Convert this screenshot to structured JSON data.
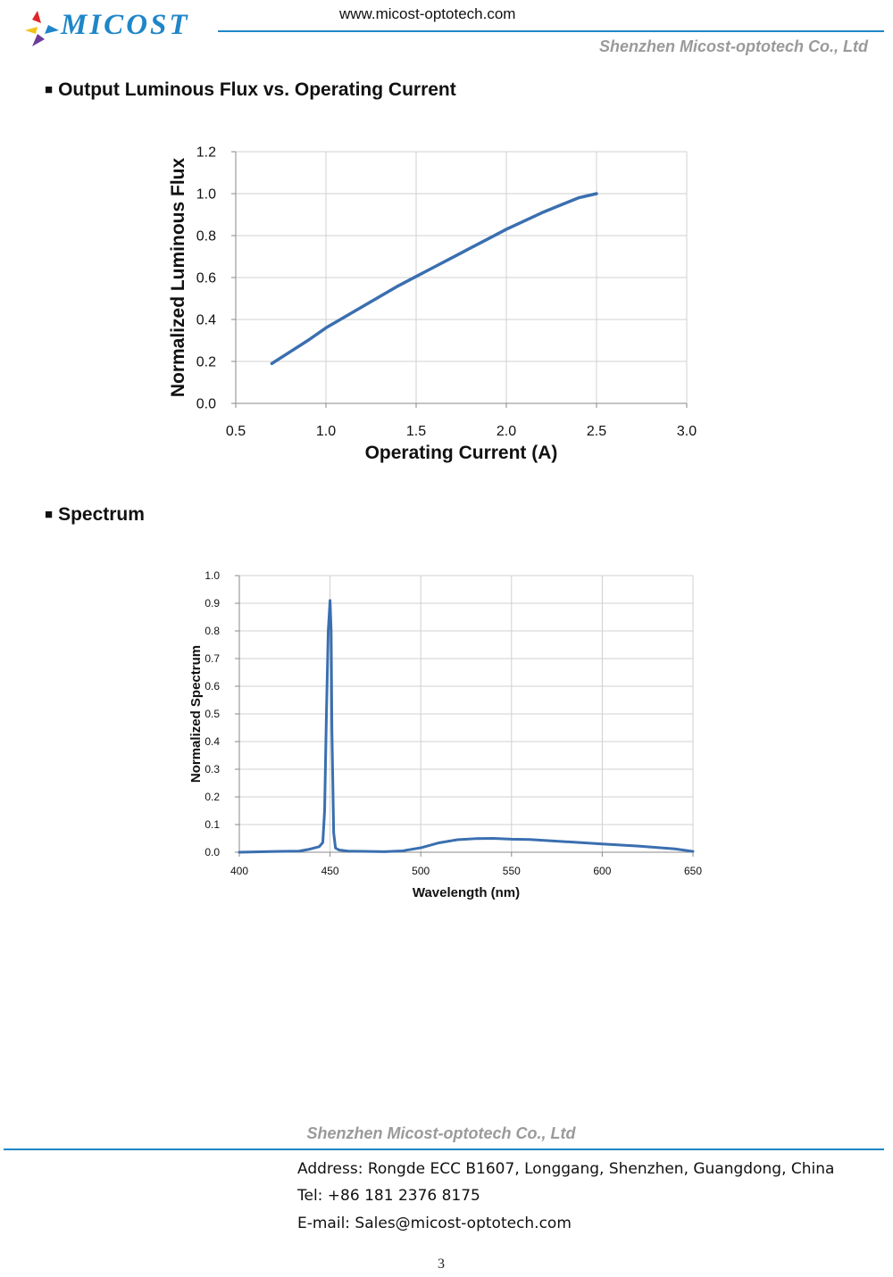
{
  "header": {
    "logo_text": "MICOST",
    "website": "www.micost-optotech.com",
    "company": "Shenzhen Micost-optotech Co., Ltd",
    "colors": {
      "brand_blue": "#1f86c8",
      "logo_red": "#e0262b",
      "logo_yellow": "#f2c318",
      "logo_purple": "#6a3d9a",
      "company_gray": "#9a9a9a"
    }
  },
  "sections": {
    "flux": {
      "bullet": "■",
      "title": "Output Luminous Flux vs. Operating Current"
    },
    "spectrum": {
      "bullet": "■",
      "title": "Spectrum"
    }
  },
  "chart_data": [
    {
      "type": "line",
      "title": "",
      "xlabel": "Operating Current (A)",
      "ylabel": "Normalized Luminous Flux",
      "xlim": [
        0.5,
        3.0
      ],
      "ylim": [
        0.0,
        1.2
      ],
      "x_ticks": [
        "0.5",
        "1.0",
        "1.5",
        "2.0",
        "2.5",
        "3.0"
      ],
      "y_ticks": [
        "0.0",
        "0.2",
        "0.4",
        "0.6",
        "0.8",
        "1.0",
        "1.2"
      ],
      "grid": true,
      "series_color": "#3a6fb0",
      "series": [
        {
          "x": [
            0.7,
            0.8,
            0.9,
            1.0,
            1.1,
            1.2,
            1.3,
            1.4,
            1.5,
            1.6,
            1.7,
            1.8,
            1.9,
            2.0,
            2.1,
            2.2,
            2.3,
            2.4,
            2.5
          ],
          "y": [
            0.19,
            0.245,
            0.3,
            0.36,
            0.41,
            0.46,
            0.51,
            0.56,
            0.605,
            0.65,
            0.695,
            0.74,
            0.785,
            0.83,
            0.87,
            0.91,
            0.945,
            0.98,
            1.0
          ]
        }
      ]
    },
    {
      "type": "line",
      "title": "",
      "xlabel": "Wavelength (nm)",
      "ylabel": "Normalized Spectrum",
      "xlim": [
        400,
        650
      ],
      "ylim": [
        0.0,
        1.0
      ],
      "x_ticks": [
        "400",
        "450",
        "500",
        "550",
        "600",
        "650"
      ],
      "y_ticks": [
        "0.0",
        "0.1",
        "0.2",
        "0.3",
        "0.4",
        "0.5",
        "0.6",
        "0.7",
        "0.8",
        "0.9",
        "1.0"
      ],
      "grid": true,
      "series_color": "#3a6fb0",
      "series": [
        {
          "x": [
            400,
            420,
            433,
            438,
            444,
            446,
            447,
            448,
            449,
            450,
            450.6,
            451,
            452,
            453,
            455,
            460,
            480,
            490,
            500,
            510,
            520,
            530,
            540,
            550,
            560,
            580,
            600,
            620,
            640,
            650
          ],
          "y": [
            0.0,
            0.003,
            0.004,
            0.01,
            0.02,
            0.035,
            0.15,
            0.5,
            0.8,
            0.91,
            0.8,
            0.45,
            0.07,
            0.015,
            0.008,
            0.004,
            0.002,
            0.005,
            0.016,
            0.034,
            0.045,
            0.049,
            0.05,
            0.047,
            0.046,
            0.038,
            0.03,
            0.022,
            0.012,
            0.003
          ]
        }
      ]
    }
  ],
  "footer": {
    "company": "Shenzhen Micost-optotech Co., Ltd",
    "address": "Address: Rongde ECC B1607, Longgang, Shenzhen, Guangdong, China",
    "tel": "Tel: +86  181 2376 8175",
    "email": "E-mail: Sales@micost-optotech.com",
    "page_number": "3"
  }
}
